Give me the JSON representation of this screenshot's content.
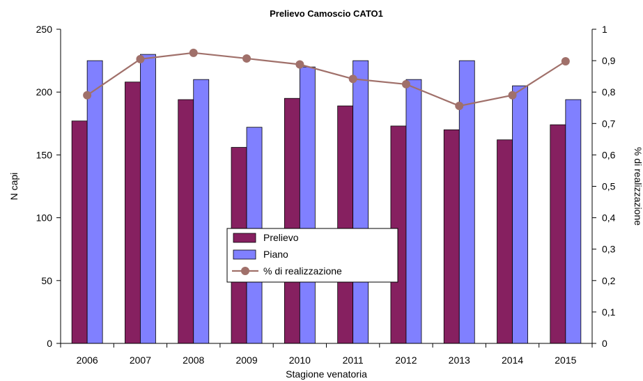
{
  "chart_data": {
    "type": "bar",
    "title": "Prelievo Camoscio CATO1",
    "xlabel": "Stagione venatoria",
    "ylabel": "N capi",
    "y2label": "% di realizzazione",
    "categories": [
      "2006",
      "2007",
      "2008",
      "2009",
      "2010",
      "2011",
      "2012",
      "2013",
      "2014",
      "2015"
    ],
    "ylim": [
      0,
      250
    ],
    "yticks": [
      "0",
      "50",
      "100",
      "150",
      "200",
      "250"
    ],
    "y2lim": [
      0,
      1
    ],
    "y2ticks": [
      "0",
      "0,1",
      "0,2",
      "0,3",
      "0,4",
      "0,5",
      "0,6",
      "0,7",
      "0,8",
      "0,9",
      "1"
    ],
    "series": [
      {
        "name": "Prelievo",
        "kind": "bar",
        "color": "#862060",
        "axis": "left",
        "values": [
          177,
          208,
          194,
          156,
          195,
          189,
          173,
          170,
          162,
          174
        ]
      },
      {
        "name": "Piano",
        "kind": "bar",
        "color": "#8080ff",
        "axis": "left",
        "values": [
          225,
          230,
          210,
          172,
          220,
          225,
          210,
          225,
          205,
          194
        ]
      },
      {
        "name": "% di realizzazione",
        "kind": "line",
        "color": "#a0706a",
        "axis": "right",
        "values": [
          0.79,
          0.905,
          0.925,
          0.907,
          0.888,
          0.842,
          0.825,
          0.756,
          0.79,
          0.898
        ]
      }
    ],
    "legend_position": "center",
    "grid": false
  }
}
